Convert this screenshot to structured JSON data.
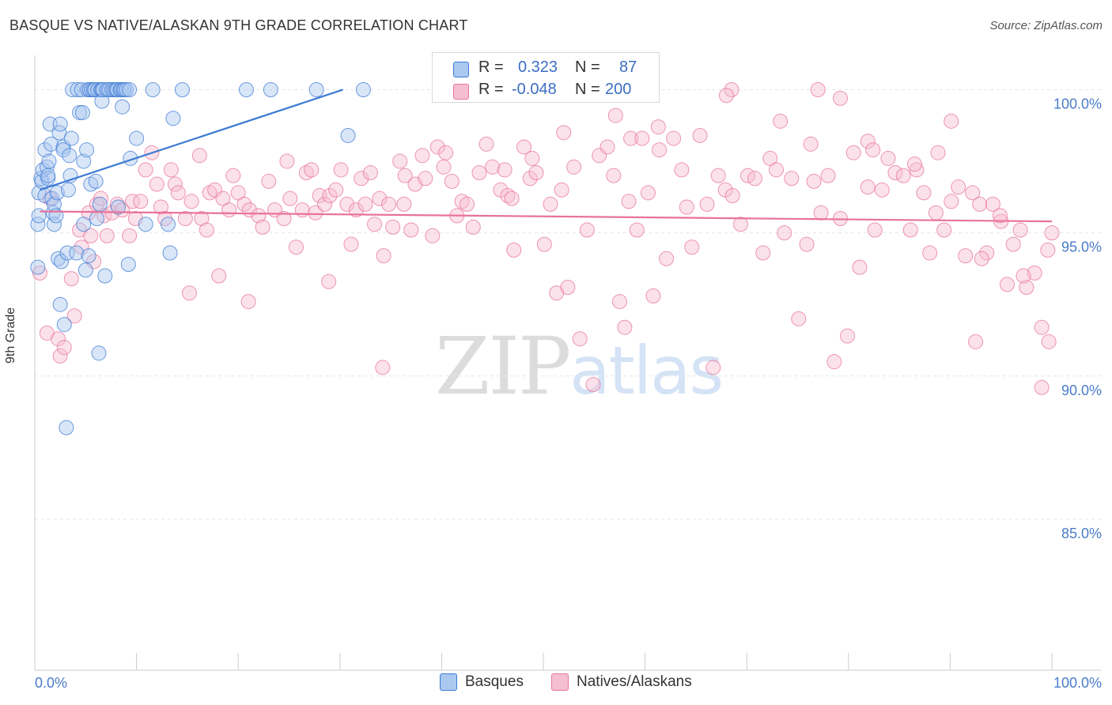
{
  "title": "BASQUE VS NATIVE/ALASKAN 9TH GRADE CORRELATION CHART",
  "source": "Source: ZipAtlas.com",
  "watermark": {
    "zip": "ZIP",
    "atlas": "atlas"
  },
  "colors": {
    "blue": "#3d7bd4",
    "blue_fill": "#aac8f0",
    "pink": "#e8739a",
    "pink_fill": "#f6bfd1",
    "axis": "#cccccc",
    "grid": "#e6e6e6",
    "tick_text": "#4a7cc9"
  },
  "legend": {
    "rows": [
      {
        "r_label": "R =",
        "r_value": "0.323",
        "n_label": "N =",
        "n_value": "87"
      },
      {
        "r_label": "R =",
        "r_value": "-0.048",
        "n_label": "N =",
        "n_value": "200"
      }
    ]
  },
  "bottom_legend": {
    "series1": "Basques",
    "series2": "Natives/Alaskans"
  },
  "chart_data": {
    "type": "scatter",
    "title": "BASQUE VS NATIVE/ALASKAN 9TH GRADE CORRELATION CHART",
    "xlabel": "",
    "ylabel": "9th Grade",
    "xlim": [
      0,
      100
    ],
    "ylim": [
      80.5,
      101.2
    ],
    "x_tick_labels": [
      "0.0%",
      "100.0%"
    ],
    "y_ticks": [
      85,
      90,
      95,
      100
    ],
    "y_tick_labels": [
      "85.0%",
      "90.0%",
      "95.0%",
      "100.0%"
    ],
    "series": [
      {
        "name": "Basques",
        "color": "#3d7bd4",
        "R": 0.323,
        "N": 87,
        "trend": {
          "x": [
            0.5,
            30.3
          ],
          "y": [
            96.5,
            100.0
          ]
        },
        "points": [
          [
            0.3,
            95.3
          ],
          [
            0.3,
            93.8
          ],
          [
            0.4,
            96.4
          ],
          [
            0.4,
            95.6
          ],
          [
            0.6,
            96.9
          ],
          [
            0.7,
            96.8
          ],
          [
            0.8,
            97.2
          ],
          [
            1.0,
            97.9
          ],
          [
            1.0,
            96.3
          ],
          [
            1.2,
            97.3
          ],
          [
            1.3,
            96.9
          ],
          [
            1.3,
            97.0
          ],
          [
            1.4,
            97.5
          ],
          [
            1.5,
            98.8
          ],
          [
            1.6,
            98.1
          ],
          [
            1.7,
            96.2
          ],
          [
            1.8,
            95.7
          ],
          [
            1.9,
            95.3
          ],
          [
            1.9,
            96.0
          ],
          [
            2.1,
            95.6
          ],
          [
            2.2,
            96.4
          ],
          [
            2.3,
            94.1
          ],
          [
            2.4,
            98.5
          ],
          [
            2.5,
            98.8
          ],
          [
            2.5,
            92.5
          ],
          [
            2.6,
            94.0
          ],
          [
            2.8,
            98.0
          ],
          [
            2.8,
            97.9
          ],
          [
            2.9,
            91.8
          ],
          [
            3.1,
            88.2
          ],
          [
            3.2,
            94.3
          ],
          [
            3.3,
            96.5
          ],
          [
            3.4,
            97.7
          ],
          [
            3.5,
            97.0
          ],
          [
            3.6,
            98.3
          ],
          [
            3.7,
            100.0
          ],
          [
            4.1,
            94.3
          ],
          [
            4.2,
            100.0
          ],
          [
            4.4,
            99.2
          ],
          [
            4.6,
            100.0
          ],
          [
            4.7,
            99.2
          ],
          [
            4.8,
            97.5
          ],
          [
            4.8,
            95.3
          ],
          [
            5.0,
            93.7
          ],
          [
            5.1,
            97.9
          ],
          [
            5.2,
            100.0
          ],
          [
            5.3,
            94.2
          ],
          [
            5.4,
            100.0
          ],
          [
            5.5,
            96.7
          ],
          [
            5.6,
            100.0
          ],
          [
            5.8,
            100.0
          ],
          [
            5.9,
            100.0
          ],
          [
            6.0,
            96.8
          ],
          [
            6.1,
            95.5
          ],
          [
            6.2,
            100.0
          ],
          [
            6.3,
            90.8
          ],
          [
            6.4,
            96.0
          ],
          [
            6.5,
            100.0
          ],
          [
            6.6,
            100.0
          ],
          [
            6.6,
            99.6
          ],
          [
            6.7,
            100.0
          ],
          [
            6.9,
            93.5
          ],
          [
            7.1,
            100.0
          ],
          [
            7.3,
            100.0
          ],
          [
            7.6,
            100.0
          ],
          [
            7.8,
            100.0
          ],
          [
            8.0,
            100.0
          ],
          [
            8.1,
            100.0
          ],
          [
            8.2,
            95.9
          ],
          [
            8.4,
            100.0
          ],
          [
            8.5,
            100.0
          ],
          [
            8.6,
            99.4
          ],
          [
            8.7,
            100.0
          ],
          [
            8.8,
            100.0
          ],
          [
            9.0,
            100.0
          ],
          [
            9.2,
            93.9
          ],
          [
            9.3,
            100.0
          ],
          [
            9.4,
            97.6
          ],
          [
            10.0,
            98.3
          ],
          [
            10.9,
            95.3
          ],
          [
            11.6,
            100.0
          ],
          [
            13.1,
            95.3
          ],
          [
            13.3,
            94.3
          ],
          [
            13.6,
            99.0
          ],
          [
            14.5,
            100.0
          ],
          [
            20.8,
            100.0
          ],
          [
            23.2,
            100.0
          ]
        ],
        "extra_points": [
          [
            27.7,
            100.0
          ],
          [
            32.3,
            100.0
          ],
          [
            30.8,
            98.4
          ]
        ]
      },
      {
        "name": "Natives/Alaskans",
        "color": "#e8739a",
        "R": -0.048,
        "N": 200,
        "trend": {
          "x": [
            0.5,
            100.0
          ],
          "y": [
            95.75,
            95.4
          ]
        },
        "points": [
          [
            0.5,
            93.6
          ],
          [
            1.2,
            91.5
          ],
          [
            1.5,
            96.2
          ],
          [
            2.3,
            91.3
          ],
          [
            2.5,
            90.7
          ],
          [
            2.9,
            91.0
          ],
          [
            3.6,
            93.4
          ],
          [
            3.9,
            92.1
          ],
          [
            4.4,
            95.1
          ],
          [
            4.6,
            94.5
          ],
          [
            5.3,
            95.7
          ],
          [
            5.5,
            94.9
          ],
          [
            5.8,
            94.0
          ],
          [
            6.1,
            96.0
          ],
          [
            6.5,
            96.2
          ],
          [
            6.8,
            95.6
          ],
          [
            7.1,
            94.9
          ],
          [
            7.6,
            95.7
          ],
          [
            8.1,
            96.0
          ],
          [
            8.6,
            95.8
          ],
          [
            9.3,
            94.9
          ],
          [
            9.6,
            96.1
          ],
          [
            9.9,
            95.5
          ],
          [
            10.4,
            96.1
          ],
          [
            10.9,
            97.2
          ],
          [
            11.5,
            97.8
          ],
          [
            12.0,
            96.7
          ],
          [
            12.4,
            95.9
          ],
          [
            12.8,
            95.5
          ],
          [
            13.4,
            97.2
          ],
          [
            13.8,
            96.7
          ],
          [
            14.1,
            96.4
          ],
          [
            14.8,
            95.5
          ],
          [
            15.2,
            92.9
          ],
          [
            15.4,
            96.1
          ],
          [
            16.2,
            97.7
          ],
          [
            16.4,
            95.5
          ],
          [
            16.9,
            95.1
          ],
          [
            17.2,
            96.4
          ],
          [
            17.7,
            96.5
          ],
          [
            18.1,
            93.5
          ],
          [
            18.5,
            96.2
          ],
          [
            19.1,
            95.8
          ],
          [
            19.5,
            97.0
          ],
          [
            20.0,
            96.4
          ],
          [
            20.6,
            96.0
          ],
          [
            21.1,
            95.8
          ],
          [
            22.0,
            95.6
          ],
          [
            22.4,
            95.2
          ],
          [
            23.0,
            96.8
          ],
          [
            23.6,
            95.8
          ],
          [
            24.5,
            95.5
          ],
          [
            25.1,
            96.2
          ],
          [
            25.7,
            94.5
          ],
          [
            26.3,
            95.8
          ],
          [
            26.7,
            97.1
          ],
          [
            27.2,
            97.2
          ],
          [
            27.6,
            95.7
          ],
          [
            28.0,
            96.3
          ],
          [
            28.5,
            96.0
          ],
          [
            29.0,
            96.3
          ],
          [
            29.6,
            96.5
          ],
          [
            30.1,
            97.2
          ],
          [
            30.7,
            96.0
          ],
          [
            31.1,
            94.6
          ],
          [
            31.6,
            95.8
          ],
          [
            32.1,
            96.9
          ],
          [
            32.5,
            96.0
          ],
          [
            33.0,
            97.1
          ],
          [
            33.4,
            95.3
          ],
          [
            33.9,
            96.2
          ],
          [
            34.3,
            94.2
          ],
          [
            34.8,
            96.0
          ],
          [
            35.2,
            95.2
          ],
          [
            35.9,
            97.5
          ],
          [
            36.3,
            96.0
          ],
          [
            37.0,
            95.1
          ],
          [
            37.4,
            96.7
          ],
          [
            38.1,
            97.7
          ],
          [
            38.4,
            96.9
          ],
          [
            39.1,
            94.9
          ],
          [
            39.6,
            98.0
          ],
          [
            40.2,
            97.3
          ],
          [
            41.0,
            96.8
          ],
          [
            41.5,
            95.6
          ],
          [
            42.0,
            96.1
          ],
          [
            42.5,
            96.0
          ],
          [
            43.1,
            95.2
          ],
          [
            43.7,
            97.1
          ],
          [
            44.4,
            98.1
          ],
          [
            45.0,
            97.3
          ],
          [
            45.8,
            96.5
          ],
          [
            46.5,
            96.3
          ],
          [
            47.1,
            94.4
          ],
          [
            48.1,
            98.0
          ],
          [
            48.7,
            96.9
          ],
          [
            49.3,
            97.1
          ],
          [
            50.1,
            94.6
          ],
          [
            50.7,
            96.0
          ],
          [
            51.3,
            92.9
          ],
          [
            51.8,
            96.5
          ],
          [
            52.4,
            93.1
          ],
          [
            53.0,
            97.3
          ],
          [
            53.6,
            91.3
          ],
          [
            54.3,
            95.1
          ],
          [
            54.9,
            89.7
          ],
          [
            55.5,
            97.7
          ],
          [
            56.3,
            98.0
          ],
          [
            56.9,
            97.0
          ],
          [
            57.5,
            92.6
          ],
          [
            58.0,
            91.7
          ],
          [
            58.6,
            98.3
          ],
          [
            59.2,
            95.1
          ],
          [
            59.7,
            98.3
          ],
          [
            60.3,
            96.4
          ],
          [
            60.8,
            92.8
          ],
          [
            61.4,
            97.9
          ],
          [
            62.1,
            94.1
          ],
          [
            62.8,
            98.3
          ],
          [
            63.6,
            97.2
          ],
          [
            64.1,
            95.9
          ],
          [
            64.6,
            94.5
          ],
          [
            65.4,
            98.4
          ],
          [
            66.1,
            96.0
          ],
          [
            66.7,
            90.3
          ],
          [
            67.2,
            97.0
          ],
          [
            67.9,
            96.5
          ],
          [
            68.6,
            96.3
          ],
          [
            69.4,
            95.3
          ],
          [
            70.1,
            97.0
          ],
          [
            70.8,
            96.9
          ],
          [
            71.6,
            94.3
          ],
          [
            72.3,
            97.6
          ],
          [
            72.9,
            97.2
          ],
          [
            73.7,
            95.0
          ],
          [
            74.4,
            96.9
          ],
          [
            75.1,
            92.0
          ],
          [
            75.9,
            94.6
          ],
          [
            76.6,
            96.8
          ],
          [
            77.3,
            95.7
          ],
          [
            78.0,
            97.0
          ],
          [
            78.6,
            90.5
          ],
          [
            79.2,
            95.5
          ],
          [
            79.9,
            91.4
          ],
          [
            80.5,
            97.8
          ],
          [
            81.1,
            93.8
          ],
          [
            81.9,
            96.6
          ],
          [
            82.6,
            95.1
          ],
          [
            83.3,
            96.5
          ],
          [
            83.9,
            97.6
          ],
          [
            84.6,
            97.1
          ],
          [
            85.4,
            97.0
          ],
          [
            86.1,
            95.1
          ],
          [
            86.7,
            97.2
          ],
          [
            87.4,
            96.4
          ],
          [
            88.0,
            94.3
          ],
          [
            88.6,
            95.7
          ],
          [
            89.4,
            95.1
          ],
          [
            90.1,
            96.1
          ],
          [
            90.8,
            96.6
          ],
          [
            91.5,
            94.2
          ],
          [
            92.2,
            96.4
          ],
          [
            92.9,
            96.0
          ],
          [
            93.6,
            94.3
          ],
          [
            94.2,
            96.0
          ],
          [
            95.0,
            95.4
          ],
          [
            95.6,
            93.2
          ],
          [
            96.2,
            94.6
          ],
          [
            96.9,
            95.1
          ],
          [
            97.5,
            93.1
          ],
          [
            98.3,
            93.6
          ],
          [
            99.0,
            91.7
          ],
          [
            99.6,
            94.4
          ],
          [
            100.0,
            95.0
          ]
        ],
        "extra_points": [
          [
            68.5,
            100.0
          ],
          [
            77.0,
            100.0
          ],
          [
            79.2,
            99.7
          ],
          [
            73.3,
            98.9
          ],
          [
            76.3,
            98.1
          ],
          [
            81.9,
            98.2
          ],
          [
            82.4,
            97.9
          ],
          [
            68.0,
            99.8
          ],
          [
            90.1,
            98.9
          ],
          [
            88.8,
            97.8
          ],
          [
            86.5,
            97.4
          ],
          [
            48.9,
            97.6
          ],
          [
            40.4,
            97.8
          ],
          [
            46.2,
            97.2
          ],
          [
            61.3,
            98.7
          ],
          [
            46.9,
            96.2
          ],
          [
            58.4,
            96.1
          ],
          [
            24.8,
            97.5
          ],
          [
            36.4,
            97.0
          ],
          [
            28.9,
            93.3
          ],
          [
            21.0,
            92.6
          ],
          [
            34.2,
            90.3
          ],
          [
            52.0,
            98.5
          ],
          [
            57.1,
            99.1
          ],
          [
            99.0,
            89.6
          ],
          [
            99.7,
            91.2
          ],
          [
            97.2,
            93.5
          ],
          [
            94.9,
            95.6
          ],
          [
            93.1,
            94.1
          ],
          [
            92.5,
            91.2
          ]
        ]
      }
    ]
  }
}
